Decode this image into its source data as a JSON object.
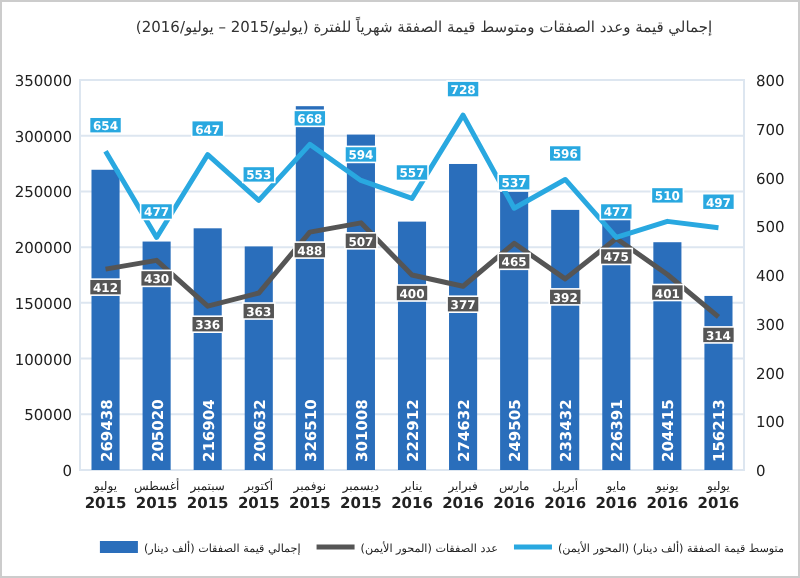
{
  "chart_data": {
    "type": "bar",
    "title": "إجمالي قيمة وعدد الصفقات ومتوسط قيمة الصفقة شهرياً للفترة (يوليو/2015 – يوليو/2016)",
    "categories": [
      "يوليو\n2015",
      "أغسطس\n2015",
      "سبتمبر\n2015",
      "أكتوبر\n2015",
      "نوفمبر\n2015",
      "ديسمبر\n2015",
      "يناير\n2016",
      "فبراير\n2016",
      "مارس\n2016",
      "أبريل\n2016",
      "مايو\n2016",
      "يونيو\n2016",
      "يوليو\n2016"
    ],
    "series": [
      {
        "name": "إجمالي قيمة الصفقات (ألف دينار)",
        "color": "#2a6ebb",
        "values": [
          269438,
          205020,
          216904,
          200632,
          326510,
          301008,
          222912,
          274632,
          249505,
          233432,
          226391,
          204415,
          156213
        ]
      },
      {
        "name": "عدد الصفقات (المحور الأيمن)",
        "type": "line",
        "axis": "y2",
        "color": "#555555",
        "values": [
          412,
          430,
          336,
          363,
          488,
          507,
          400,
          377,
          465,
          392,
          475,
          401,
          314
        ]
      },
      {
        "name": "متوسط قيمة الصفقة (ألف دينار) (المحور الأيمن)",
        "type": "line",
        "axis": "y2",
        "color": "#29a8e0",
        "values": [
          654,
          477,
          647,
          553,
          668,
          594,
          557,
          728,
          537,
          596,
          477,
          510,
          497
        ]
      }
    ],
    "ylim": [
      0,
      350000
    ],
    "yticks": [
      0,
      50000,
      100000,
      150000,
      200000,
      250000,
      300000,
      350000
    ],
    "y2lim": [
      0,
      800
    ],
    "y2ticks": [
      0,
      100,
      200,
      300,
      400,
      500,
      600,
      700,
      800
    ],
    "grid": "y",
    "data_labels": true,
    "legend": "bottom"
  }
}
